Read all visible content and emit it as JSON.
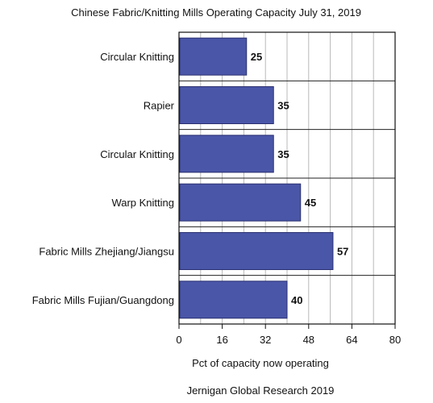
{
  "chart_data": {
    "type": "bar",
    "orientation": "horizontal",
    "title": "Chinese Fabric/Knitting Mills Operating Capacity  July 31, 2019",
    "xlabel": "Pct of capacity now operating",
    "ylabel": "",
    "source": "Jernigan Global Research  2019",
    "categories": [
      "Circular Knitting",
      "Rapier",
      "Circular Knitting",
      "Warp Knitting",
      "Fabric Mills Zhejiang/Jiangsu",
      "Fabric Mills Fujian/Guangdong"
    ],
    "values": [
      25,
      35,
      35,
      45,
      57,
      40
    ],
    "xlim": [
      0,
      80
    ],
    "xticks": [
      0,
      16,
      32,
      48,
      64,
      80
    ],
    "grid": "vertical",
    "legend": "none",
    "bar_color": "#4a56a8"
  }
}
